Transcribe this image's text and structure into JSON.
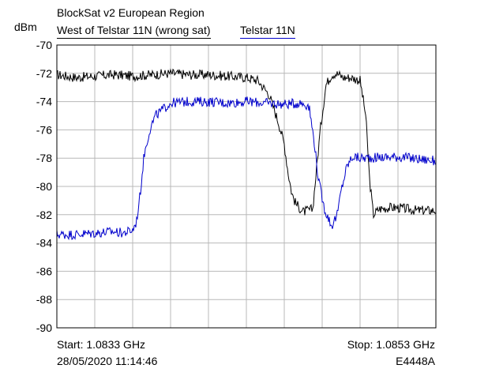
{
  "header": {
    "title": "BlockSat v2 European Region",
    "unit": "dBm"
  },
  "footer": {
    "start": "Start: 1.0833 GHz",
    "stop": "Stop: 1.0853 GHz",
    "timestamp": "28/05/2020 11:14:46",
    "model": "E4448A"
  },
  "chart_data": {
    "type": "line",
    "title": "BlockSat v2 European Region",
    "xlabel": "",
    "ylabel": "dBm",
    "xlim": [
      1.0833,
      1.0853
    ],
    "ylim": [
      -90,
      -70
    ],
    "ytick_labels": [
      "-70",
      "-72",
      "-74",
      "-76",
      "-78",
      "-80",
      "-82",
      "-84",
      "-86",
      "-88",
      "-90"
    ],
    "grid": true,
    "legend": "top-left",
    "series": [
      {
        "name": "West of Telstar 11N (wrong sat)",
        "color": "#000000",
        "x": [
          1.0833,
          1.0834,
          1.0835,
          1.0836,
          1.0837,
          1.0838,
          1.0839,
          1.084,
          1.0841,
          1.0842,
          1.0843,
          1.08436,
          1.08442,
          1.08447,
          1.0845,
          1.08452,
          1.08454,
          1.08456,
          1.0846,
          1.08465,
          1.08469,
          1.08472,
          1.08475,
          1.08477,
          1.08479,
          1.08481,
          1.08485,
          1.0849,
          1.08493,
          1.08495,
          1.08497,
          1.085,
          1.08505,
          1.0851,
          1.0852,
          1.0853
        ],
        "y": [
          -72.1,
          -72.3,
          -72.2,
          -72.1,
          -72.2,
          -72.1,
          -72.0,
          -72.1,
          -72.1,
          -72.2,
          -72.3,
          -72.5,
          -73.5,
          -75.5,
          -77.0,
          -79.0,
          -80.5,
          -81.2,
          -81.8,
          -81.6,
          -76.0,
          -72.8,
          -72.1,
          -72.0,
          -72.1,
          -72.3,
          -72.3,
          -72.5,
          -75.0,
          -79.5,
          -82.0,
          -81.6,
          -81.5,
          -81.5,
          -81.7,
          -81.7
        ]
      },
      {
        "name": "Telstar 11N",
        "color": "#0000cc",
        "x": [
          1.0833,
          1.0834,
          1.0835,
          1.0836,
          1.08365,
          1.0837,
          1.0837201,
          1.0837401,
          1.08376,
          1.08379,
          1.0838201,
          1.0839,
          1.084,
          1.0841,
          1.0842,
          1.0843,
          1.0844,
          1.0845,
          1.08459,
          1.08463,
          1.08466,
          1.08468,
          1.08471,
          1.08475,
          1.08478,
          1.0848,
          1.08483,
          1.08486,
          1.0849,
          1.0851,
          1.0853
        ],
        "y": [
          -83.4,
          -83.4,
          -83.3,
          -83.2,
          -83.3,
          -83.1,
          -82.5,
          -80.5,
          -77.8,
          -76.0,
          -75.0,
          -74.1,
          -74.0,
          -74.0,
          -74.1,
          -74.0,
          -74.1,
          -74.2,
          -74.1,
          -74.3,
          -77.0,
          -79.5,
          -81.5,
          -82.8,
          -82.0,
          -80.3,
          -78.6,
          -77.9,
          -78.0,
          -77.9,
          -78.2
        ]
      }
    ]
  }
}
